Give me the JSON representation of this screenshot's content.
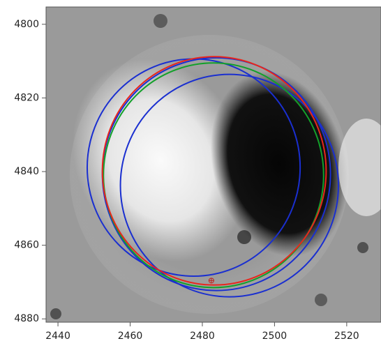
{
  "chart_data": {
    "type": "circles",
    "xlim": [
      2436.7,
      2529.5
    ],
    "ylim": [
      4880.9,
      4795.3
    ],
    "xticks": [
      2440,
      2460,
      2480,
      2500,
      2520
    ],
    "yticks": [
      4800,
      4820,
      4840,
      4860,
      4880
    ],
    "circles": [
      {
        "color": "#1a2fd0",
        "x": 2477.6,
        "y": 4838.9,
        "r": 29.5
      },
      {
        "color": "#1a2fd0",
        "x": 2483.9,
        "y": 4840.7,
        "r": 31.6
      },
      {
        "color": "#1a2fd0",
        "x": 2487.5,
        "y": 4843.8,
        "r": 30.2
      },
      {
        "color": "#12a02a",
        "x": 2483.1,
        "y": 4841.0,
        "r": 30.5
      },
      {
        "color": "#e8261c",
        "x": 2483.3,
        "y": 4839.8,
        "r": 31.0
      }
    ],
    "marker": {
      "x": 2482.5,
      "y": 4869.6,
      "color": "#c0201a"
    }
  }
}
